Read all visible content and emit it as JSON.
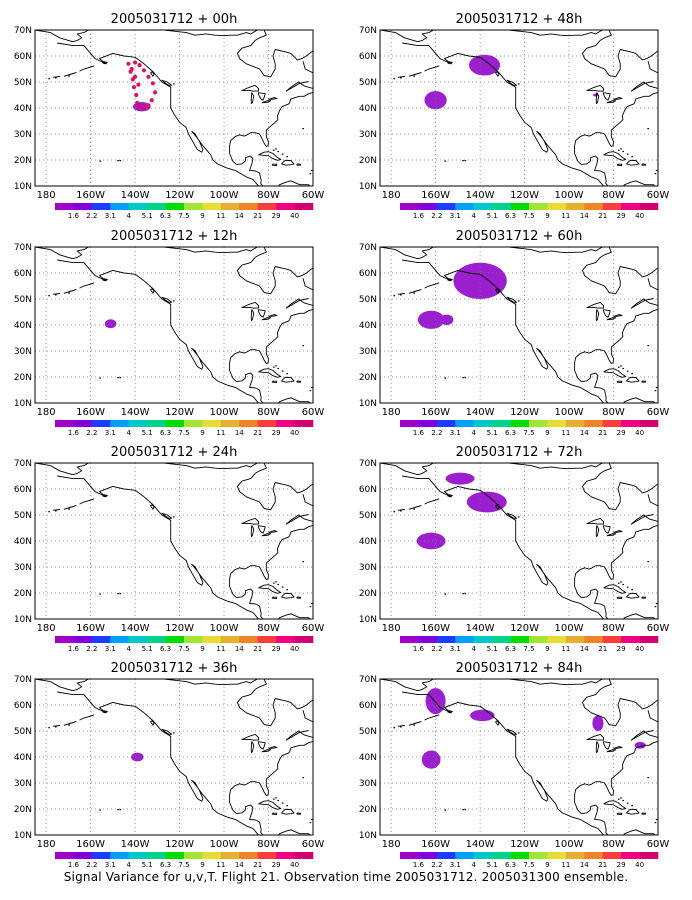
{
  "figure": {
    "caption": "Signal Variance for u,v,T. Flight 21. Observation time 2005031712. 2005031300 ensemble."
  },
  "panels": [
    {
      "title": "2005031712 + 00h",
      "lead": "00h"
    },
    {
      "title": "2005031712 + 48h",
      "lead": "48h"
    },
    {
      "title": "2005031712 + 12h",
      "lead": "12h"
    },
    {
      "title": "2005031712 + 60h",
      "lead": "60h"
    },
    {
      "title": "2005031712 + 24h",
      "lead": "24h"
    },
    {
      "title": "2005031712 + 72h",
      "lead": "72h"
    },
    {
      "title": "2005031712 + 36h",
      "lead": "36h"
    },
    {
      "title": "2005031712 + 84h",
      "lead": "84h"
    }
  ],
  "map": {
    "lat_labels": [
      "10N",
      "20N",
      "30N",
      "40N",
      "50N",
      "60N",
      "70N"
    ],
    "lon_labels": [
      "180",
      "160W",
      "140W",
      "120W",
      "100W",
      "80W",
      "60W"
    ],
    "lat_range": [
      10,
      70
    ],
    "lon_range": [
      -185,
      -60
    ],
    "grid": "dotted",
    "region": "North Pacific and North America"
  },
  "colorbar": {
    "labels": [
      "1.6",
      "2.2",
      "3.1",
      "4",
      "5.1",
      "6.3",
      "7.5",
      "9",
      "11",
      "14",
      "21",
      "29",
      "40"
    ],
    "colors": [
      "#a000c8",
      "#8200dc",
      "#1e3cff",
      "#00a0ff",
      "#00c8c8",
      "#00d28c",
      "#00dc00",
      "#a0e632",
      "#e6dc32",
      "#e6af2d",
      "#f08228",
      "#fa3c3c",
      "#f00082",
      "#d2006e"
    ]
  },
  "colors": {
    "signal": "#9b1fcf",
    "observations": "#e0105a",
    "coast": "#000000",
    "grid": "#777777"
  },
  "observations_track": {
    "panel": "00h",
    "points": [
      [
        -143,
        57
      ],
      [
        -142,
        54
      ],
      [
        -141,
        51
      ],
      [
        -140.5,
        48
      ],
      [
        -139.5,
        45
      ],
      [
        -139,
        42
      ],
      [
        -138,
        40.5
      ],
      [
        -136,
        40
      ],
      [
        -134,
        41
      ],
      [
        -132.5,
        43
      ],
      [
        -131,
        46
      ],
      [
        -132,
        49.5
      ],
      [
        -134,
        52
      ],
      [
        -136,
        54.5
      ],
      [
        -138,
        56.5
      ],
      [
        -140,
        57.5
      ],
      [
        -141.5,
        55
      ],
      [
        -140,
        52
      ],
      [
        -138.5,
        49
      ]
    ]
  },
  "signal_blobs": [
    {
      "panel": "00h",
      "lon": -137,
      "lat": 40.5,
      "rx": 4,
      "ry": 1.8
    },
    {
      "panel": "12h",
      "lon": -151,
      "lat": 40.5,
      "rx": 2.6,
      "ry": 1.7
    },
    {
      "panel": "36h",
      "lon": -139,
      "lat": 40,
      "rx": 2.8,
      "ry": 1.7
    },
    {
      "panel": "48h",
      "lon": -160,
      "lat": 43,
      "rx": 5,
      "ry": 3.5
    },
    {
      "panel": "48h",
      "lon": -138,
      "lat": 56.5,
      "rx": 7,
      "ry": 4
    },
    {
      "panel": "48h",
      "lon": -88,
      "lat": 45,
      "rx": 1.2,
      "ry": 0.6
    },
    {
      "panel": "60h",
      "lon": -162,
      "lat": 42,
      "rx": 6,
      "ry": 3.5
    },
    {
      "panel": "60h",
      "lon": -155,
      "lat": 42,
      "rx": 3,
      "ry": 2
    },
    {
      "panel": "60h",
      "lon": -140,
      "lat": 57,
      "rx": 12,
      "ry": 7
    },
    {
      "panel": "72h",
      "lon": -162,
      "lat": 40,
      "rx": 6.5,
      "ry": 3.2
    },
    {
      "panel": "72h",
      "lon": -149,
      "lat": 64,
      "rx": 6.5,
      "ry": 2.3
    },
    {
      "panel": "72h",
      "lon": -137,
      "lat": 55,
      "rx": 9,
      "ry": 4
    },
    {
      "panel": "84h",
      "lon": -160,
      "lat": 61.5,
      "rx": 4.5,
      "ry": 5
    },
    {
      "panel": "84h",
      "lon": -162,
      "lat": 39,
      "rx": 4.2,
      "ry": 3.5
    },
    {
      "panel": "84h",
      "lon": -139,
      "lat": 56,
      "rx": 5.5,
      "ry": 2.2
    },
    {
      "panel": "84h",
      "lon": -87,
      "lat": 53,
      "rx": 2.5,
      "ry": 3
    },
    {
      "panel": "84h",
      "lon": -68,
      "lat": 44.5,
      "rx": 2.5,
      "ry": 1.3
    }
  ],
  "coastlines": [
    [
      [
        -175,
        65
      ],
      [
        -168,
        64
      ],
      [
        -163,
        64
      ],
      [
        -158,
        59
      ],
      [
        -153,
        57
      ],
      [
        -156,
        59
      ],
      [
        -150,
        61
      ],
      [
        -145,
        60
      ],
      [
        -140,
        59.5
      ],
      [
        -136,
        57
      ],
      [
        -132,
        54
      ],
      [
        -128,
        50
      ],
      [
        -124,
        48
      ],
      [
        -124,
        43
      ],
      [
        -124,
        40
      ],
      [
        -122,
        37
      ],
      [
        -120,
        34.5
      ],
      [
        -117,
        32.5
      ],
      [
        -116,
        30
      ],
      [
        -114,
        27
      ],
      [
        -112,
        24
      ],
      [
        -110,
        23
      ],
      [
        -109.5,
        24
      ],
      [
        -111,
        27
      ],
      [
        -113,
        30
      ],
      [
        -114.5,
        31
      ],
      [
        -112.5,
        29
      ],
      [
        -110,
        26
      ],
      [
        -108,
        24
      ],
      [
        -106,
        22
      ],
      [
        -105,
        20
      ],
      [
        -103,
        18.5
      ],
      [
        -99,
        17
      ],
      [
        -95,
        16
      ],
      [
        -92,
        14.5
      ],
      [
        -90,
        13.5
      ],
      [
        -87,
        12.5
      ],
      [
        -85.5,
        11
      ],
      [
        -84,
        9.5
      ],
      [
        -82,
        8.5
      ],
      [
        -79.5,
        9
      ],
      [
        -77,
        8.5
      ],
      [
        -75,
        10.5
      ],
      [
        -72,
        11.5
      ],
      [
        -70,
        12
      ],
      [
        -66,
        10.5
      ],
      [
        -62,
        10.5
      ],
      [
        -60,
        8.5
      ]
    ],
    [
      [
        -60,
        46
      ],
      [
        -62,
        45.5
      ],
      [
        -64,
        44.5
      ],
      [
        -66,
        44.5
      ],
      [
        -68,
        44
      ],
      [
        -70,
        43.5
      ],
      [
        -70.5,
        42
      ],
      [
        -71,
        41.5
      ],
      [
        -74,
        40.5
      ],
      [
        -75,
        39
      ],
      [
        -76,
        37
      ],
      [
        -75.8,
        35.5
      ],
      [
        -77,
        34.5
      ],
      [
        -79,
        33
      ],
      [
        -81,
        31.5
      ],
      [
        -81,
        29
      ],
      [
        -80,
        27
      ],
      [
        -80.2,
        25.5
      ],
      [
        -81,
        25.2
      ],
      [
        -82,
        26.5
      ],
      [
        -82.8,
        28
      ],
      [
        -84,
        30
      ],
      [
        -86,
        30.5
      ],
      [
        -88,
        30.5
      ],
      [
        -90,
        29.5
      ],
      [
        -91,
        29.2
      ],
      [
        -93,
        29.7
      ],
      [
        -95,
        29
      ],
      [
        -97,
        27.5
      ],
      [
        -97.5,
        25.5
      ],
      [
        -97.5,
        22.5
      ],
      [
        -96,
        19.5
      ],
      [
        -94.5,
        18.3
      ],
      [
        -92,
        18.5
      ],
      [
        -90.5,
        19.5
      ],
      [
        -90.2,
        21
      ],
      [
        -88,
        21.5
      ],
      [
        -87,
        20.5
      ],
      [
        -87.5,
        18.5
      ],
      [
        -88.5,
        16
      ],
      [
        -86,
        15.8
      ],
      [
        -84,
        15
      ],
      [
        -83.3,
        12
      ],
      [
        -83.5,
        11
      ],
      [
        -82,
        9.5
      ]
    ],
    [
      [
        -60,
        62
      ],
      [
        -63,
        60
      ],
      [
        -65,
        59
      ],
      [
        -67,
        58.5
      ],
      [
        -70,
        61
      ],
      [
        -72,
        61.5
      ],
      [
        -77,
        62.5
      ],
      [
        -78,
        60
      ],
      [
        -77,
        57
      ],
      [
        -77,
        55
      ],
      [
        -79,
        52
      ],
      [
        -82,
        52.5
      ],
      [
        -84,
        55
      ],
      [
        -87,
        56
      ],
      [
        -90,
        57
      ],
      [
        -93,
        59
      ],
      [
        -94,
        61
      ],
      [
        -92,
        63
      ],
      [
        -88,
        64
      ],
      [
        -86,
        66
      ],
      [
        -84,
        67
      ],
      [
        -81,
        68
      ],
      [
        -82,
        70
      ]
    ],
    [
      [
        -85,
        70
      ],
      [
        -88,
        68.5
      ],
      [
        -90,
        69
      ],
      [
        -94,
        68
      ],
      [
        -97,
        68
      ],
      [
        -100,
        67.8
      ],
      [
        -104,
        68
      ],
      [
        -108,
        68.5
      ],
      [
        -113,
        68
      ],
      [
        -117,
        69
      ],
      [
        -122,
        69.5
      ],
      [
        -127,
        70
      ]
    ],
    [
      [
        -141,
        70
      ],
      [
        -145,
        70
      ],
      [
        -152,
        70.5
      ],
      [
        -157,
        70.7
      ],
      [
        -161,
        70
      ],
      [
        -163,
        69
      ],
      [
        -166,
        68.5
      ],
      [
        -164,
        67
      ],
      [
        -166,
        66
      ],
      [
        -168,
        65.5
      ],
      [
        -170,
        66
      ],
      [
        -174,
        67
      ],
      [
        -178,
        69
      ],
      [
        -185,
        70
      ]
    ],
    [
      [
        -84.5,
        22
      ],
      [
        -82,
        23
      ],
      [
        -80,
        23.2
      ],
      [
        -78,
        22.5
      ],
      [
        -76,
        21
      ],
      [
        -74.5,
        20.2
      ],
      [
        -76,
        19.9
      ],
      [
        -78,
        20.5
      ],
      [
        -80,
        21.6
      ],
      [
        -82.5,
        21.8
      ],
      [
        -84.5,
        22
      ]
    ],
    [
      [
        -74.2,
        18.5
      ],
      [
        -72.5,
        19.9
      ],
      [
        -70,
        19.8
      ],
      [
        -68.5,
        18.5
      ],
      [
        -70,
        18.2
      ],
      [
        -72,
        18
      ],
      [
        -74.2,
        18.5
      ]
    ],
    [
      [
        -67.2,
        18.5
      ],
      [
        -65.6,
        18.4
      ],
      [
        -65.6,
        18
      ],
      [
        -67.2,
        18
      ],
      [
        -67.2,
        18.5
      ]
    ],
    [
      [
        -78.3,
        18.4
      ],
      [
        -76.3,
        18.4
      ],
      [
        -76.3,
        17.8
      ],
      [
        -78.3,
        18
      ],
      [
        -78.3,
        18.4
      ]
    ],
    [
      [
        -88.5,
        48
      ],
      [
        -86,
        48.7
      ],
      [
        -84.5,
        47.5
      ],
      [
        -84.5,
        46.5
      ],
      [
        -87,
        46.5
      ],
      [
        -89,
        46.8
      ],
      [
        -92,
        46.7
      ],
      [
        -90,
        47.5
      ],
      [
        -88.5,
        48
      ]
    ],
    [
      [
        -87.5,
        46
      ],
      [
        -86.6,
        44.5
      ],
      [
        -87.3,
        42
      ],
      [
        -87.7,
        41.7
      ],
      [
        -87.8,
        43
      ],
      [
        -87.5,
        46
      ]
    ],
    [
      [
        -84.7,
        45.9
      ],
      [
        -84.2,
        44.6
      ],
      [
        -83.5,
        43.6
      ],
      [
        -82.5,
        43
      ],
      [
        -82,
        44
      ],
      [
        -81.5,
        45.5
      ],
      [
        -84.7,
        45.9
      ]
    ],
    [
      [
        -83,
        42
      ],
      [
        -80.5,
        42.8
      ],
      [
        -79,
        42.8
      ],
      [
        -80.5,
        42.2
      ],
      [
        -83,
        42
      ]
    ],
    [
      [
        -80,
        43.3
      ],
      [
        -78,
        43.4
      ],
      [
        -76.2,
        43.7
      ],
      [
        -77.5,
        44
      ],
      [
        -80,
        43.3
      ]
    ],
    [
      [
        -64.5,
        58
      ],
      [
        -63.5,
        55
      ],
      [
        -60,
        53.5
      ],
      [
        -60,
        47.5
      ],
      [
        -64,
        48.5
      ],
      [
        -66.5,
        50
      ],
      [
        -70,
        48
      ],
      [
        -72,
        46.5
      ],
      [
        -70,
        47.5
      ],
      [
        -66,
        49.5
      ],
      [
        -62,
        50.2
      ]
    ],
    [
      [
        -123.5,
        48.7
      ],
      [
        -125.5,
        50
      ],
      [
        -128,
        50.7
      ],
      [
        -127,
        50
      ],
      [
        -125,
        48.8
      ],
      [
        -123.5,
        48.7
      ]
    ],
    [
      [
        -132.3,
        54
      ],
      [
        -131.5,
        53
      ],
      [
        -132,
        52.2
      ],
      [
        -133,
        53.5
      ],
      [
        -132.3,
        54
      ]
    ],
    [
      [
        -154,
        57.8
      ],
      [
        -152.5,
        57.5
      ],
      [
        -153.5,
        57
      ],
      [
        -154.5,
        57.3
      ],
      [
        -154,
        57.8
      ]
    ],
    [
      [
        -165,
        54.2
      ],
      [
        -163.5,
        54.8
      ],
      [
        -161,
        55.5
      ],
      [
        -158.5,
        56.2
      ],
      [
        -160.5,
        55.6
      ],
      [
        -163,
        55
      ],
      [
        -165,
        54.2
      ]
    ],
    [
      [
        -172,
        52.2
      ],
      [
        -168,
        53.2
      ],
      [
        -166.5,
        53.6
      ],
      [
        -169,
        53
      ],
      [
        -172,
        52.2
      ]
    ],
    [
      [
        -177,
        51.8
      ],
      [
        -174,
        52.1
      ],
      [
        -176,
        51.9
      ],
      [
        -177,
        51.8
      ]
    ]
  ],
  "specks": [
    [
      -148,
      20
    ],
    [
      -147,
      20
    ],
    [
      -156,
      19.8
    ],
    [
      -78,
      24
    ],
    [
      -77,
      24.5
    ],
    [
      -76,
      23.5
    ],
    [
      -74,
      22.5
    ],
    [
      -72,
      21.5
    ],
    [
      -61.5,
      15
    ],
    [
      -61,
      16.2
    ],
    [
      -64.8,
      32.3
    ],
    [
      -176,
      51.8
    ],
    [
      -179,
      51.5
    ],
    [
      -170,
      52.5
    ],
    [
      -55,
      47
    ],
    [
      -123,
      49.5
    ]
  ]
}
